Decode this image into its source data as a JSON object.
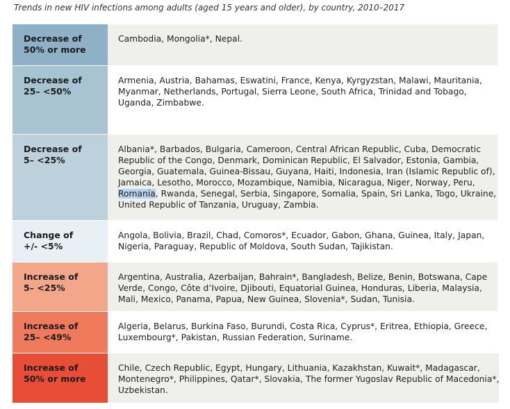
{
  "title": "Trends in new HIV infections among adults (aged 15 years and older), by country, 2010–2017",
  "table": {
    "rows": [
      {
        "label": [
          "Decrease of",
          "50% or more"
        ],
        "color": "#8fb1c5",
        "lines": [
          "Cambodia, Mongolia*, Nepal."
        ]
      },
      {
        "label": [
          "Decrease of",
          "25– <50%"
        ],
        "color": "#a8c4d3",
        "lines": [
          "Armenia, Austria, Bahamas, Eswatini, France, Kenya, Kyrgyzstan, Malawi, Mauritania,",
          "Myanmar, Netherlands, Portugal, Sierra Leone, South Africa, Trinidad and Tobago,",
          "Uganda, Zimbabwe."
        ]
      },
      {
        "label": [
          "Decrease of",
          "5– <25%"
        ],
        "color": "#bdd1dd",
        "lines": [
          "Albania*, Barbados, Bulgaria, Cameroon, Central African Republic, Cuba, Democratic",
          "Republic of the Congo, Denmark, Dominican Republic, El Salvador, Estonia, Gambia,",
          "Georgia, Guatemala, Guinea-Bissau, Guyana, Haiti, Indonesia, Iran (Islamic Republic of),",
          "Jamaica, Lesotho, Morocco, Mozambique, Namibia, Nicaragua, Niger, Norway, Peru,",
          {
            "marked": "Romania",
            "text": ", Rwanda, Senegal, Serbia, Singapore, Somalia, Spain, Sri Lanka, Togo, Ukraine,"
          },
          "United Republic of Tanzania, Uruguay, Zambia."
        ]
      },
      {
        "label": [
          "Change of",
          "+/- <5%"
        ],
        "color": "#e8f0f6",
        "lines": [
          "Angola, Bolivia, Brazil, Chad, Comoros*, Ecuador, Gabon, Ghana, Guinea, Italy, Japan,",
          "Nigeria, Paraguay, Republic of Moldova, South Sudan, Tajikistan."
        ]
      },
      {
        "label": [
          "Increase of",
          "5– <25%"
        ],
        "color": "#f4a68b",
        "lines": [
          "Argentina, Australia, Azerbaijan, Bahrain*, Bangladesh, Belize, Benin, Botswana, Cape",
          "Verde, Congo, Côte d’Ivoire, Djibouti, Equatorial Guinea, Honduras, Liberia, Malaysia,",
          "Mali, Mexico, Panama, Papua, New Guinea, Slovenia*, Sudan, Tunisia."
        ]
      },
      {
        "label": [
          "Increase of",
          "25– <49%"
        ],
        "color": "#f07a5c",
        "lines": [
          "Algeria, Belarus, Burkina Faso, Burundi, Costa Rica, Cyprus*, Eritrea, Ethiopia, Greece,",
          "Luxembourg*, Pakistan, Russian Federation, Suriname."
        ]
      },
      {
        "label": [
          "Increase of",
          "50% or more"
        ],
        "color": "#e84e36",
        "lines": [
          "Chile, Czech Republic, Egypt, Hungary, Lithuania, Kazakhstan, Kuwait*, Madagascar,",
          "Montenegro*, Philippines, Qatar*, Slovakia, The former Yugoslav Republic of Macedonia*,",
          "Uzbekistan."
        ]
      }
    ]
  }
}
